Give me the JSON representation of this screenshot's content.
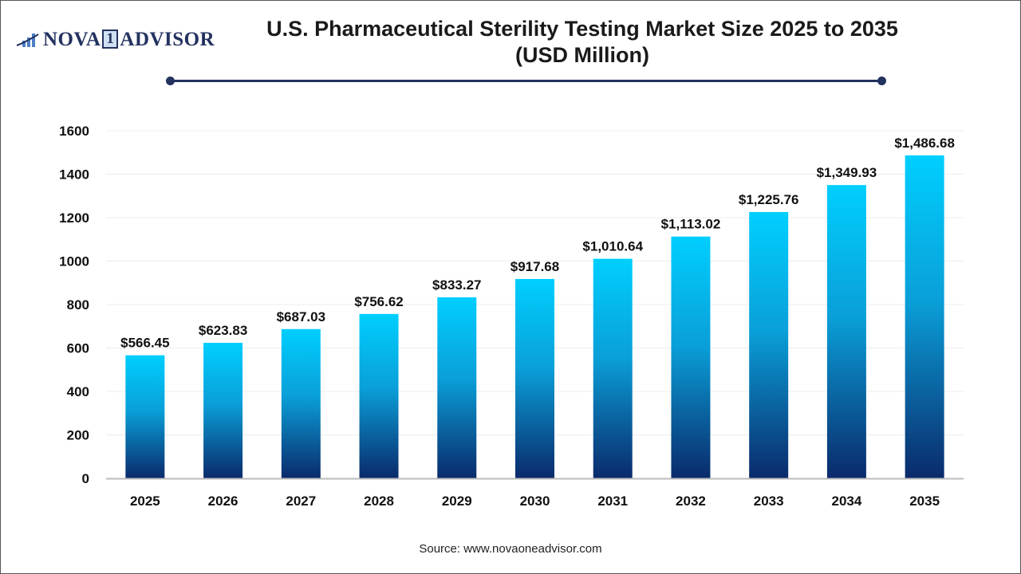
{
  "logo": {
    "text_left": "NOVA",
    "text_one": "1",
    "text_right": "ADVISOR"
  },
  "title_line1": "U.S. Pharmaceutical Sterility Testing Market Size 2025 to 2035",
  "title_line2": "(USD Million)",
  "source": "Source: www.novaoneadvisor.com",
  "colors": {
    "bar_top": "#00cfff",
    "bar_bottom": "#0a2a6b",
    "accent": "#23325f"
  },
  "chart_data": {
    "type": "bar",
    "categories": [
      "2025",
      "2026",
      "2027",
      "2028",
      "2029",
      "2030",
      "2031",
      "2032",
      "2033",
      "2034",
      "2035"
    ],
    "values": [
      566.45,
      623.83,
      687.03,
      756.62,
      833.27,
      917.68,
      1010.64,
      1113.02,
      1225.76,
      1349.93,
      1486.68
    ],
    "data_labels": [
      "$566.45",
      "$623.83",
      "$687.03",
      "$756.62",
      "$833.27",
      "$917.68",
      "$1,010.64",
      "$1,113.02",
      "$1,225.76",
      "$1,349.93",
      "$1,486.68"
    ],
    "yticks": [
      "0",
      "200",
      "400",
      "600",
      "800",
      "1000",
      "1200",
      "1400",
      "1600"
    ],
    "ylim": [
      0,
      1600
    ],
    "grid": true,
    "xlabel": "",
    "ylabel": ""
  }
}
